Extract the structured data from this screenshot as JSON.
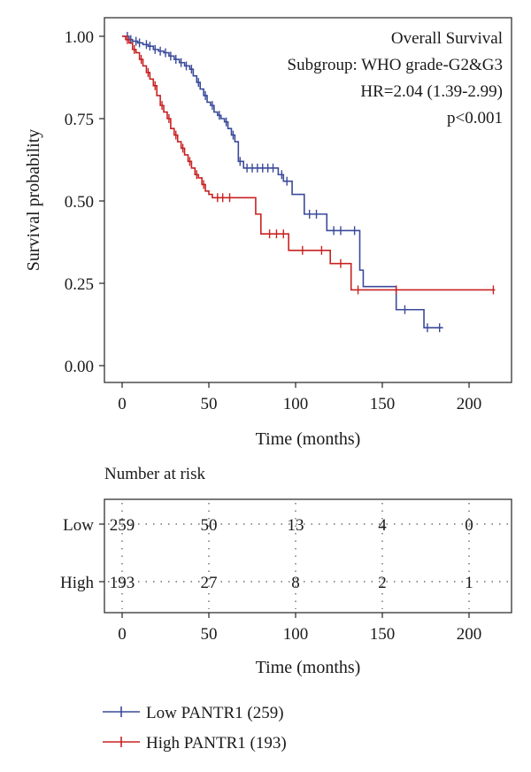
{
  "chart_data": [
    {
      "type": "line",
      "title": "Overall Survival",
      "annotations": [
        "Subgroup: WHO grade-G2&G3",
        "HR=2.04 (1.39-2.99)",
        "p<0.001"
      ],
      "xlabel": "Time (months)",
      "ylabel": "Survival probability",
      "xlim": [
        0,
        220
      ],
      "ylim": [
        0,
        1
      ],
      "xticks": [
        0,
        50,
        100,
        150,
        200
      ],
      "yticks": [
        0,
        0.25,
        0.5,
        0.75,
        1.0
      ],
      "ytick_labels": [
        "0.00",
        "0.25",
        "0.50",
        "0.75",
        "1.00"
      ],
      "step": true,
      "grid": false,
      "legend_position": "bottom-left",
      "series": [
        {
          "name": "Low PANTR1 (259)",
          "color": "#3a4a9a",
          "points": [
            [
              0,
              1.0
            ],
            [
              2,
              1.0
            ],
            [
              4,
              0.99
            ],
            [
              6,
              0.985
            ],
            [
              9,
              0.98
            ],
            [
              12,
              0.975
            ],
            [
              15,
              0.97
            ],
            [
              18,
              0.96
            ],
            [
              21,
              0.955
            ],
            [
              24,
              0.95
            ],
            [
              27,
              0.94
            ],
            [
              30,
              0.93
            ],
            [
              33,
              0.92
            ],
            [
              36,
              0.91
            ],
            [
              39,
              0.9
            ],
            [
              41,
              0.88
            ],
            [
              43,
              0.86
            ],
            [
              45,
              0.84
            ],
            [
              47,
              0.82
            ],
            [
              49,
              0.8
            ],
            [
              51,
              0.79
            ],
            [
              53,
              0.77
            ],
            [
              55,
              0.76
            ],
            [
              57,
              0.75
            ],
            [
              59,
              0.74
            ],
            [
              61,
              0.72
            ],
            [
              63,
              0.7
            ],
            [
              65,
              0.68
            ],
            [
              67,
              0.62
            ],
            [
              70,
              0.6
            ],
            [
              80,
              0.6
            ],
            [
              88,
              0.6
            ],
            [
              90,
              0.58
            ],
            [
              93,
              0.56
            ],
            [
              98,
              0.52
            ],
            [
              105,
              0.46
            ],
            [
              118,
              0.41
            ],
            [
              135,
              0.41
            ],
            [
              137,
              0.29
            ],
            [
              139,
              0.24
            ],
            [
              156,
              0.24
            ],
            [
              158,
              0.17
            ],
            [
              172,
              0.17
            ],
            [
              174,
              0.115
            ],
            [
              185,
              0.115
            ]
          ],
          "censor_times": [
            3,
            5,
            8,
            10,
            14,
            16,
            19,
            22,
            25,
            28,
            31,
            34,
            37,
            40,
            44,
            48,
            52,
            56,
            60,
            64,
            68,
            72,
            75,
            78,
            81,
            84,
            87,
            92,
            95,
            108,
            112,
            122,
            126,
            134,
            163,
            176,
            183
          ]
        },
        {
          "name": "High PANTR1 (193)",
          "color": "#c82222",
          "points": [
            [
              0,
              1.0
            ],
            [
              2,
              0.99
            ],
            [
              4,
              0.98
            ],
            [
              6,
              0.96
            ],
            [
              8,
              0.95
            ],
            [
              10,
              0.93
            ],
            [
              12,
              0.91
            ],
            [
              14,
              0.89
            ],
            [
              16,
              0.87
            ],
            [
              18,
              0.85
            ],
            [
              20,
              0.82
            ],
            [
              22,
              0.79
            ],
            [
              24,
              0.77
            ],
            [
              26,
              0.75
            ],
            [
              28,
              0.72
            ],
            [
              30,
              0.7
            ],
            [
              32,
              0.68
            ],
            [
              34,
              0.66
            ],
            [
              36,
              0.64
            ],
            [
              38,
              0.62
            ],
            [
              40,
              0.6
            ],
            [
              42,
              0.58
            ],
            [
              44,
              0.57
            ],
            [
              46,
              0.55
            ],
            [
              48,
              0.53
            ],
            [
              50,
              0.52
            ],
            [
              52,
              0.51
            ],
            [
              63,
              0.51
            ],
            [
              75,
              0.51
            ],
            [
              77,
              0.46
            ],
            [
              80,
              0.4
            ],
            [
              87,
              0.4
            ],
            [
              96,
              0.35
            ],
            [
              118,
              0.35
            ],
            [
              120,
              0.31
            ],
            [
              130,
              0.31
            ],
            [
              132,
              0.23
            ],
            [
              215,
              0.23
            ]
          ],
          "censor_times": [
            3,
            7,
            11,
            15,
            19,
            23,
            27,
            31,
            35,
            39,
            43,
            47,
            55,
            58,
            62,
            85,
            89,
            93,
            104,
            115,
            126,
            136,
            158,
            214
          ]
        }
      ]
    },
    {
      "type": "table",
      "title": "Number at risk",
      "xlabel": "Time (months)",
      "xlim": [
        0,
        220
      ],
      "xticks": [
        0,
        50,
        100,
        150,
        200
      ],
      "rows": [
        "Low",
        "High"
      ],
      "columns": [
        0,
        50,
        100,
        150,
        200
      ],
      "values": [
        [
          259,
          50,
          13,
          4,
          0
        ],
        [
          193,
          27,
          8,
          2,
          1
        ]
      ]
    }
  ],
  "legend": [
    {
      "label": "Low PANTR1 (259)",
      "color": "#3a4a9a"
    },
    {
      "label": "High PANTR1 (193)",
      "color": "#c82222"
    }
  ]
}
